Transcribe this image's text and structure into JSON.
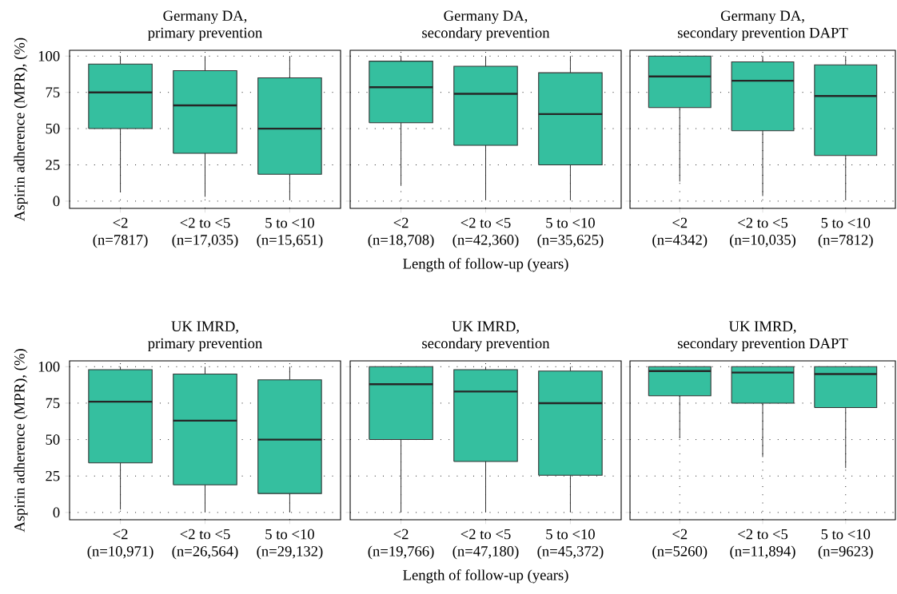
{
  "chart_data": [
    {
      "type": "box",
      "title": "Germany DA,\nprimary prevention",
      "ylabel": "Aspirin adherence (MPR), (%)",
      "categories": [
        "<2\n(n=7817)",
        "<2 to <5\n(n=17,035)",
        "5 to <10\n(n=15,651)"
      ],
      "ylim": [
        -5,
        104
      ],
      "yticks": [
        0,
        25,
        50,
        75,
        100
      ],
      "grid": true,
      "color": "#35bf9f",
      "boxes": [
        {
          "low": 6,
          "q1": 50,
          "median": 75,
          "q3": 94.5,
          "high": 100
        },
        {
          "low": 3,
          "q1": 33,
          "median": 66,
          "q3": 90,
          "high": 100
        },
        {
          "low": 1,
          "q1": 18.5,
          "median": 50,
          "q3": 85,
          "high": 100
        }
      ]
    },
    {
      "type": "box",
      "title": "Germany DA,\nsecondary prevention",
      "xlabel": "Length of follow-up (years)",
      "categories": [
        "<2\n(n=18,708)",
        "<2 to <5\n(n=42,360)",
        "5 to <10\n(n=35,625)"
      ],
      "ylim": [
        -5,
        104
      ],
      "yticks": [
        0,
        25,
        50,
        75,
        100
      ],
      "grid": true,
      "color": "#35bf9f",
      "tick_labels": "x",
      "boxes": [
        {
          "low": 10.5,
          "q1": 54,
          "median": 78.5,
          "q3": 96.5,
          "high": 100
        },
        {
          "low": 1,
          "q1": 38.5,
          "median": 74,
          "q3": 93,
          "high": 100
        },
        {
          "low": 1,
          "q1": 25,
          "median": 60,
          "q3": 88.5,
          "high": 100
        }
      ]
    },
    {
      "type": "box",
      "title": "Germany DA,\nsecondary prevention DAPT",
      "categories": [
        "<2\n(n=4342)",
        "<2 to <5\n(n=10,035)",
        "5 to <10\n(n=7812)"
      ],
      "ylim": [
        -5,
        104
      ],
      "yticks": [
        0,
        25,
        50,
        75,
        100
      ],
      "grid": true,
      "color": "#35bf9f",
      "tick_labels": "x",
      "boxes": [
        {
          "low": 13.5,
          "q1": 64.5,
          "median": 86,
          "q3": 100,
          "high": 100
        },
        {
          "low": 3.5,
          "q1": 48.5,
          "median": 83,
          "q3": 96,
          "high": 100
        },
        {
          "low": 1,
          "q1": 31.5,
          "median": 72.5,
          "q3": 94,
          "high": 100
        }
      ]
    },
    {
      "type": "box",
      "title": "UK IMRD,\nprimary prevention",
      "ylabel": "Aspirin adherence (MPR), (%)",
      "categories": [
        "<2\n(n=10,971)",
        "<2 to <5\n(n=26,564)",
        "5 to <10\n(n=29,132)"
      ],
      "ylim": [
        -5,
        104
      ],
      "yticks": [
        0,
        25,
        50,
        75,
        100
      ],
      "grid": true,
      "color": "#35bf9f",
      "boxes": [
        {
          "low": 2,
          "q1": 34,
          "median": 76,
          "q3": 98,
          "high": 100
        },
        {
          "low": 0,
          "q1": 19,
          "median": 63,
          "q3": 95,
          "high": 100
        },
        {
          "low": 0,
          "q1": 13,
          "median": 50,
          "q3": 91,
          "high": 100
        }
      ]
    },
    {
      "type": "box",
      "title": "UK IMRD,\nsecondary prevention",
      "xlabel": "Length of follow-up (years)",
      "categories": [
        "<2\n(n=19,766)",
        "<2 to <5\n(n=47,180)",
        "5 to <10\n(n=45,372)"
      ],
      "ylim": [
        -5,
        104
      ],
      "yticks": [
        0,
        25,
        50,
        75,
        100
      ],
      "grid": true,
      "color": "#35bf9f",
      "tick_labels": "x",
      "boxes": [
        {
          "low": 0,
          "q1": 50,
          "median": 88,
          "q3": 100,
          "high": 100
        },
        {
          "low": 0,
          "q1": 35,
          "median": 83,
          "q3": 98,
          "high": 100
        },
        {
          "low": 0,
          "q1": 25.5,
          "median": 75,
          "q3": 97,
          "high": 100
        }
      ]
    },
    {
      "type": "box",
      "title": "UK IMRD,\nsecondary prevention DAPT",
      "categories": [
        "<2\n(n=5260)",
        "<2 to <5\n(n=11,894)",
        "5 to <10\n(n=9623)"
      ],
      "ylim": [
        -5,
        104
      ],
      "yticks": [
        0,
        25,
        50,
        75,
        100
      ],
      "grid": true,
      "color": "#35bf9f",
      "tick_labels": "x",
      "boxes": [
        {
          "low": 51,
          "q1": 80,
          "median": 97,
          "q3": 100,
          "high": 100
        },
        {
          "low": 38,
          "q1": 75,
          "median": 96,
          "q3": 100,
          "high": 100
        },
        {
          "low": 30.5,
          "q1": 72,
          "median": 95,
          "q3": 100,
          "high": 100
        }
      ]
    }
  ]
}
